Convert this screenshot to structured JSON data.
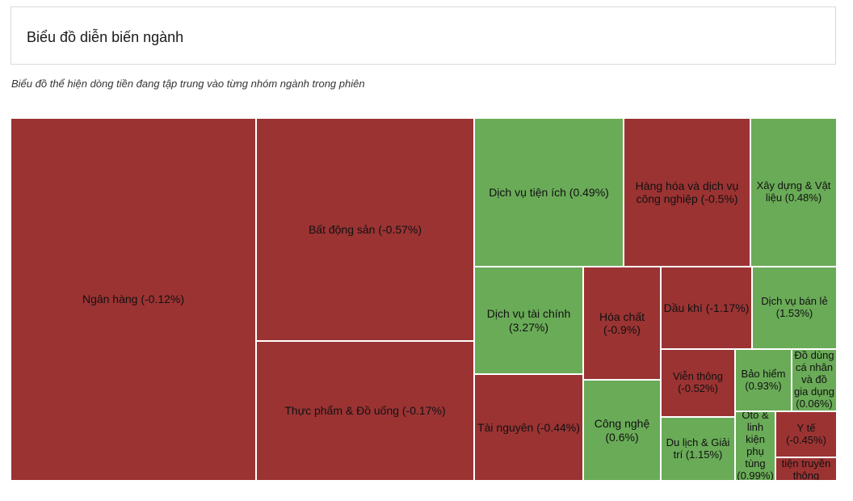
{
  "header": {
    "title": "Biểu đồ diễn biến ngành"
  },
  "subtitle": "Biểu đồ thể hiện dòng tiền đang tập trung vào từng nhóm ngành trong phiên",
  "colors": {
    "negative": "#9b3333",
    "positive": "#6aab58",
    "border": "#ffffff"
  },
  "chart_data": {
    "type": "treemap",
    "title": "Biểu đồ diễn biến ngành",
    "items": [
      {
        "name": "Ngân hàng",
        "change": -0.12,
        "label": "Ngân hàng (-0.12%)"
      },
      {
        "name": "Bất động sản",
        "change": -0.57,
        "label": "Bất động sản (-0.57%)"
      },
      {
        "name": "Thực phẩm & Đồ uống",
        "change": -0.17,
        "label": "Thực phẩm & Đồ uống (-0.17%)"
      },
      {
        "name": "Dịch vụ tiện ích",
        "change": 0.49,
        "label": "Dịch vụ tiện ích (0.49%)"
      },
      {
        "name": "Hàng hóa và dịch vụ công nghiệp",
        "change": -0.5,
        "label": "Hàng hóa và dịch vụ công nghiệp (-0.5%)"
      },
      {
        "name": "Xây dựng & Vật liệu",
        "change": 0.48,
        "label": "Xây dựng & Vật liệu (0.48%)"
      },
      {
        "name": "Dịch vụ tài chính",
        "change": 3.27,
        "label": "Dịch vụ tài chính (3.27%)"
      },
      {
        "name": "Tài nguyên",
        "change": -0.44,
        "label": "Tài nguyên (-0.44%)"
      },
      {
        "name": "Hóa chất",
        "change": -0.9,
        "label": "Hóa chất (-0.9%)"
      },
      {
        "name": "Công nghệ",
        "change": 0.6,
        "label": "Công nghệ (0.6%)"
      },
      {
        "name": "Dầu khí",
        "change": -1.17,
        "label": "Dầu khí (-1.17%)"
      },
      {
        "name": "Dịch vụ bán lẻ",
        "change": 1.53,
        "label": "Dịch vụ bán lẻ (1.53%)"
      },
      {
        "name": "Viễn thông",
        "change": -0.52,
        "label": "Viễn thông (-0.52%)"
      },
      {
        "name": "Bảo hiểm",
        "change": 0.93,
        "label": "Bảo hiểm (0.93%)"
      },
      {
        "name": "Đồ dùng cá nhân và đồ gia dụng",
        "change": 0.06,
        "label": "Đồ dùng cá nhân và đồ gia dụng (0.06%)"
      },
      {
        "name": "Du lịch & Giải trí",
        "change": 1.15,
        "label": "Du lịch & Giải trí (1.15%)"
      },
      {
        "name": "Ôtô & linh kiện phụ tùng",
        "change": 0.99,
        "label": "Ôtô & linh kiện phụ tùng (0.99%)"
      },
      {
        "name": "Y tế",
        "change": -0.45,
        "label": "Y tế (-0.45%)"
      },
      {
        "name": "tiện truyền thông",
        "change": null,
        "label": "tiện truyền thông"
      }
    ]
  }
}
